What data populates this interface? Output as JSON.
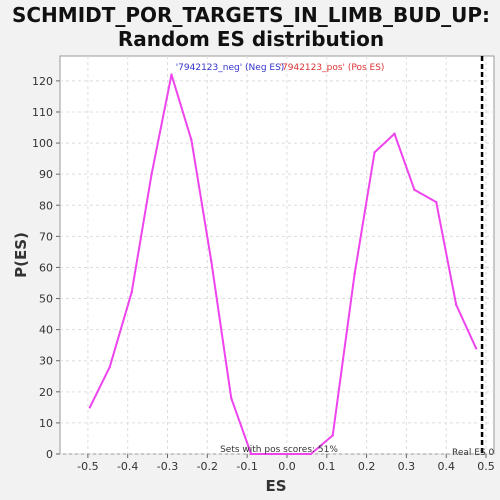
{
  "chart_data": {
    "type": "line",
    "title_line1": "SCHMIDT_POR_TARGETS_IN_LIMB_BUD_UP:",
    "title_line2": "Random ES distribution",
    "xlabel": "ES",
    "ylabel": "P(ES)",
    "xlim": [
      -0.57,
      0.52
    ],
    "ylim": [
      0,
      128
    ],
    "xticks": [
      "-0.5",
      "-0.4",
      "-0.3",
      "-0.2",
      "-0.1",
      "0.0",
      "0.1",
      "0.2",
      "0.3",
      "0.4",
      "0.5"
    ],
    "yticks": [
      "0",
      "10",
      "20",
      "30",
      "40",
      "50",
      "60",
      "70",
      "80",
      "90",
      "100",
      "110",
      "120"
    ],
    "grid": true,
    "series": [
      {
        "color": "#ee44ee",
        "x": [
          -0.495,
          -0.445,
          -0.39,
          -0.34,
          -0.29,
          -0.24,
          -0.19,
          -0.14,
          -0.09,
          -0.04,
          0.01,
          0.06,
          0.115,
          0.17,
          0.22,
          0.27,
          0.32,
          0.375,
          0.425,
          0.475
        ],
        "y": [
          15,
          28,
          52,
          90,
          122,
          101,
          62,
          18,
          0,
          0,
          0,
          0,
          6,
          58,
          97,
          103,
          85,
          81,
          48,
          34
        ]
      }
    ],
    "real_es": 0.49,
    "annotations": {
      "neg": "'7942123_neg' (Neg ES)",
      "pos": "'7942123_pos' (Pos ES)",
      "pos_scores": "Sets with pos scores: 51%",
      "real_es_label": "Real ES 0"
    },
    "colors": {
      "neg": "#3333cc",
      "pos": "#dd3333",
      "real_es_line": "#000000",
      "grid": "#dddddd"
    }
  }
}
